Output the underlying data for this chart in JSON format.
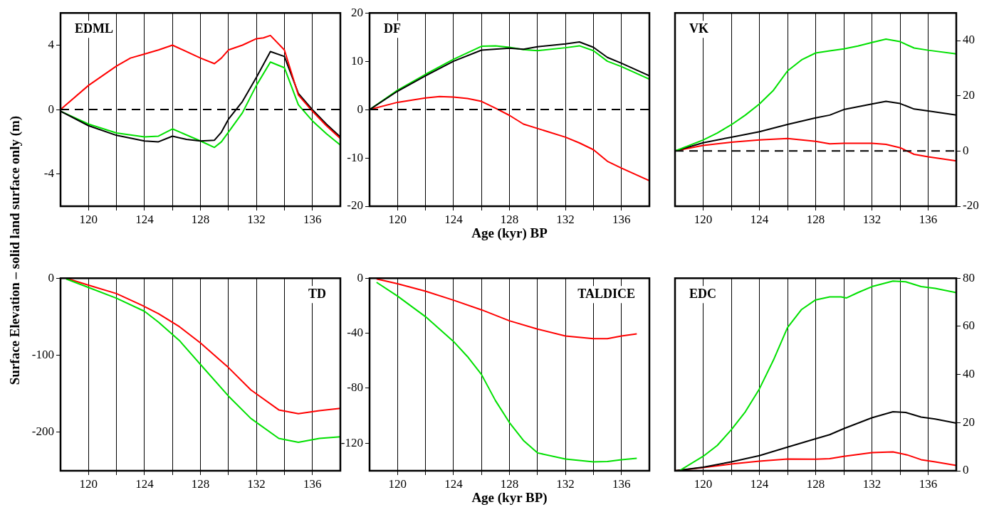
{
  "chart_data": [
    {
      "type": "line",
      "title": "EDML",
      "ylabel": "Surface Elevation – solid land surface only (m)",
      "xlim": [
        118,
        138
      ],
      "xticks": [
        120,
        {
          "value": 122,
          "label": null
        },
        124,
        {
          "value": 126,
          "label": null
        },
        128,
        {
          "value": 130,
          "label": null
        },
        132,
        {
          "value": 134,
          "label": null
        },
        136
      ],
      "ylim": [
        -6,
        6
      ],
      "yticks": [
        -4,
        0,
        4
      ],
      "grid": "x",
      "ref_lines": [
        {
          "axis": "y",
          "value": 0,
          "color": "#000000",
          "line_style": "dashed"
        }
      ],
      "series": [
        {
          "color": "#ff0000",
          "x": [
            118,
            120,
            122,
            123,
            124,
            125,
            126,
            128,
            129,
            129.5,
            130,
            131,
            132,
            132.5,
            133,
            134,
            135,
            136,
            137,
            138
          ],
          "values": [
            0,
            1.5,
            2.7,
            3.2,
            3.45,
            3.7,
            4.0,
            3.2,
            2.85,
            3.2,
            3.7,
            4.0,
            4.4,
            4.45,
            4.6,
            3.7,
            0.9,
            -0.1,
            -1.0,
            -1.8
          ]
        },
        {
          "color": "#000000",
          "x": [
            118,
            120,
            122,
            124,
            125,
            126,
            127,
            128,
            129,
            129.5,
            130,
            131,
            132,
            133,
            134,
            135,
            136,
            137,
            138
          ],
          "values": [
            -0.1,
            -1.0,
            -1.6,
            -1.95,
            -2.0,
            -1.65,
            -1.85,
            -1.95,
            -1.9,
            -1.4,
            -0.6,
            0.5,
            2.0,
            3.6,
            3.3,
            1.0,
            0,
            -0.9,
            -1.7
          ]
        },
        {
          "color": "#00e000",
          "x": [
            118,
            120,
            122,
            124,
            125,
            126,
            128,
            129,
            129.5,
            130,
            131,
            132,
            133,
            134,
            135,
            136,
            137,
            138
          ],
          "values": [
            -0.1,
            -0.9,
            -1.45,
            -1.7,
            -1.65,
            -1.2,
            -1.95,
            -2.35,
            -2.0,
            -1.4,
            -0.2,
            1.5,
            2.95,
            2.6,
            0.3,
            -0.7,
            -1.5,
            -2.2
          ]
        }
      ]
    },
    {
      "type": "line",
      "title": "DF",
      "xlabel": "Age (kyr) BP",
      "xlim": [
        118,
        138
      ],
      "xticks": [
        120,
        {
          "value": 122,
          "label": null
        },
        124,
        {
          "value": 126,
          "label": null
        },
        128,
        {
          "value": 130,
          "label": null
        },
        132,
        {
          "value": 134,
          "label": null
        },
        136
      ],
      "ylim": [
        -20,
        20
      ],
      "yticks": [
        -20,
        -10,
        0,
        10,
        20
      ],
      "grid": "x",
      "ref_lines": [
        {
          "axis": "y",
          "value": 0,
          "color": "#000000",
          "line_style": "dashed"
        }
      ],
      "series": [
        {
          "color": "#000000",
          "x": [
            118,
            120,
            122,
            124,
            126,
            128,
            129,
            130,
            132,
            133,
            134,
            135,
            136,
            138
          ],
          "values": [
            0,
            3.8,
            7.0,
            10.0,
            12.3,
            12.7,
            12.5,
            13.0,
            13.6,
            14.0,
            12.9,
            10.8,
            9.6,
            7.0
          ]
        },
        {
          "color": "#00e000",
          "x": [
            118,
            120,
            122,
            124,
            126,
            127,
            128,
            129,
            130,
            132,
            133,
            134,
            135,
            136,
            138
          ],
          "values": [
            0,
            4.0,
            7.3,
            10.4,
            13.1,
            13.2,
            12.9,
            12.4,
            12.2,
            12.8,
            13.2,
            12.2,
            10.0,
            8.9,
            6.3
          ]
        },
        {
          "color": "#ff0000",
          "x": [
            118,
            120,
            122,
            123,
            124,
            125,
            126,
            127,
            128,
            129,
            130,
            132,
            133,
            134,
            135,
            136,
            138
          ],
          "values": [
            0,
            1.5,
            2.4,
            2.7,
            2.6,
            2.3,
            1.7,
            0.3,
            -1.2,
            -3.0,
            -3.9,
            -5.7,
            -6.9,
            -8.3,
            -10.7,
            -12.1,
            -14.7
          ]
        }
      ]
    },
    {
      "type": "line",
      "title": "VK",
      "xlim": [
        118,
        138
      ],
      "xticks": [
        120,
        {
          "value": 122,
          "label": null
        },
        124,
        {
          "value": 126,
          "label": null
        },
        128,
        {
          "value": 130,
          "label": null
        },
        132,
        {
          "value": 134,
          "label": null
        },
        136
      ],
      "ylim": [
        -20,
        50
      ],
      "yticks": [
        -20,
        0,
        20,
        40
      ],
      "grid": "x",
      "ref_lines": [
        {
          "axis": "y",
          "value": 0,
          "color": "#000000",
          "line_style": "dashed"
        }
      ],
      "series": [
        {
          "color": "#00e000",
          "x": [
            118,
            120,
            121,
            122,
            123,
            124,
            125,
            126,
            127,
            128,
            129,
            130,
            131,
            132,
            133,
            134,
            135,
            136,
            138
          ],
          "values": [
            0,
            4.0,
            6.5,
            9.5,
            13,
            17,
            22,
            29,
            33,
            35.5,
            36.3,
            37,
            38,
            39.3,
            40.5,
            39.6,
            37.3,
            36.5,
            35.2
          ]
        },
        {
          "color": "#000000",
          "x": [
            118,
            120,
            122,
            124,
            126,
            128,
            129,
            130,
            132,
            133,
            134,
            135,
            136,
            138
          ],
          "values": [
            0,
            3,
            5,
            7,
            9.6,
            12,
            13,
            15,
            17,
            18,
            17.2,
            15.2,
            14.5,
            13.0
          ]
        },
        {
          "color": "#ff0000",
          "x": [
            118,
            120,
            122,
            124,
            126,
            128,
            129,
            130,
            132,
            133,
            134,
            135,
            136,
            138
          ],
          "values": [
            0,
            2,
            3.2,
            4,
            4.5,
            3.5,
            2.6,
            2.8,
            2.8,
            2.4,
            1.2,
            -1.2,
            -2.1,
            -3.6
          ]
        }
      ]
    },
    {
      "type": "line",
      "title": "TD",
      "xlim": [
        118,
        138
      ],
      "xticks": [
        120,
        {
          "value": 122,
          "label": null
        },
        124,
        {
          "value": 126,
          "label": null
        },
        128,
        {
          "value": 130,
          "label": null
        },
        132,
        {
          "value": 134,
          "label": null
        },
        136
      ],
      "ylim": [
        -250,
        0
      ],
      "yticks": [
        -200,
        -100,
        0
      ],
      "grid": "x",
      "series": [
        {
          "color": "#00e000",
          "x": [
            118.4,
            120,
            122,
            124,
            125,
            126.5,
            128,
            130,
            131.6,
            133.6,
            135,
            136.5,
            138
          ],
          "values": [
            -1,
            -12,
            -26,
            -43,
            -57,
            -81,
            -112,
            -153,
            -182,
            -208,
            -213,
            -208,
            -206
          ]
        },
        {
          "color": "#ff0000",
          "x": [
            118.4,
            120,
            122,
            123.8,
            125,
            126.5,
            128,
            130,
            131.6,
            133.6,
            135,
            136.5,
            138
          ],
          "values": [
            0,
            -9,
            -20,
            -35,
            -46,
            -63,
            -84,
            -116,
            -145,
            -171,
            -176,
            -172,
            -169
          ]
        }
      ]
    },
    {
      "type": "line",
      "title": "TALDICE",
      "xlabel": "Age (kyr BP)",
      "xlim": [
        118,
        138
      ],
      "xticks": [
        120,
        {
          "value": 122,
          "label": null
        },
        124,
        {
          "value": 126,
          "label": null
        },
        128,
        {
          "value": 130,
          "label": null
        },
        132,
        {
          "value": 134,
          "label": null
        },
        136
      ],
      "ylim": [
        -140,
        0
      ],
      "yticks": [
        -120,
        -80,
        -40,
        0
      ],
      "grid": "x",
      "series": [
        {
          "color": "#00e000",
          "x": [
            118.5,
            120,
            122,
            124,
            125,
            126,
            127,
            128,
            129,
            130,
            132,
            134,
            135,
            136,
            137.1
          ],
          "values": [
            -3,
            -13,
            -28,
            -46,
            -57,
            -70,
            -89,
            -105,
            -118,
            -127,
            -131.5,
            -133.5,
            -133.3,
            -132,
            -131
          ]
        },
        {
          "color": "#ff0000",
          "x": [
            118.5,
            120,
            122,
            124,
            126,
            128,
            130,
            132,
            134,
            135,
            136,
            137.1
          ],
          "values": [
            -0.5,
            -4,
            -9.5,
            -16,
            -23,
            -31,
            -37,
            -42,
            -44,
            -44,
            -42,
            -40.5
          ]
        }
      ]
    },
    {
      "type": "line",
      "title": "EDC",
      "xlim": [
        118,
        138
      ],
      "xticks": [
        120,
        {
          "value": 122,
          "label": null
        },
        124,
        {
          "value": 126,
          "label": null
        },
        128,
        {
          "value": 130,
          "label": null
        },
        132,
        {
          "value": 134,
          "label": null
        },
        136
      ],
      "ylim": [
        0,
        80
      ],
      "yticks": [
        0,
        20,
        40,
        60,
        80
      ],
      "grid": "x",
      "series": [
        {
          "color": "#00e000",
          "x": [
            118.3,
            120,
            121,
            122,
            123,
            124,
            125,
            126,
            127,
            128,
            129,
            129.8,
            130.2,
            131,
            132,
            133.5,
            134.4,
            135.5,
            136.5,
            138
          ],
          "values": [
            0,
            6,
            10.5,
            17,
            24.5,
            34,
            46,
            59.5,
            67,
            71,
            72.2,
            72.2,
            71.8,
            74,
            76.5,
            78.8,
            78.5,
            76.5,
            75.8,
            74
          ]
        },
        {
          "color": "#000000",
          "x": [
            118,
            120,
            122,
            124,
            126,
            128,
            129,
            130,
            132,
            133.5,
            134.4,
            135.5,
            136.5,
            138
          ],
          "values": [
            0,
            1.5,
            3.7,
            6.3,
            9.8,
            13.3,
            15,
            17.5,
            22,
            24.5,
            24.2,
            22.3,
            21.5,
            19.8
          ]
        },
        {
          "color": "#ff0000",
          "x": [
            118,
            120,
            122,
            124,
            126,
            128,
            129,
            130,
            132,
            133.5,
            134.5,
            135.5,
            136.5,
            138
          ],
          "values": [
            0,
            1.3,
            2.8,
            4,
            4.9,
            4.8,
            5,
            6,
            7.5,
            7.8,
            6.6,
            4.6,
            3.7,
            2.2
          ]
        }
      ]
    }
  ]
}
